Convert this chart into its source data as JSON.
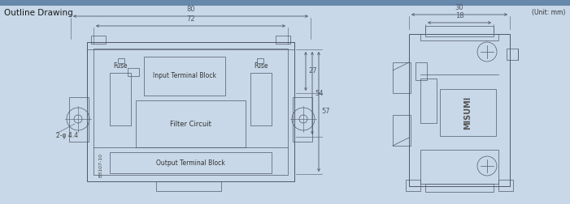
{
  "title": "Outline Drawing",
  "unit_label": "(Unit: mm)",
  "bg_color": "#c8d8e8",
  "line_color": "#505868",
  "dim_color": "#505868",
  "fig_width": 7.01,
  "fig_height": 2.52,
  "dpi": 100,
  "dim_80": "80",
  "dim_72": "72",
  "dim_27": "27",
  "dim_54": "54",
  "dim_57": "57",
  "dim_30": "30",
  "dim_18": "18",
  "label_input": "Input Terminal Block",
  "label_filter": "Filter Circuit",
  "label_output": "Output Terminal Block",
  "label_fuse_l": "Fuse",
  "label_fuse_r": "Fuse",
  "label_hole": "2-φ 4.4",
  "label_code": "B3107-10",
  "label_misumi": "MISUMI",
  "top_bar_color": "#6688aa"
}
